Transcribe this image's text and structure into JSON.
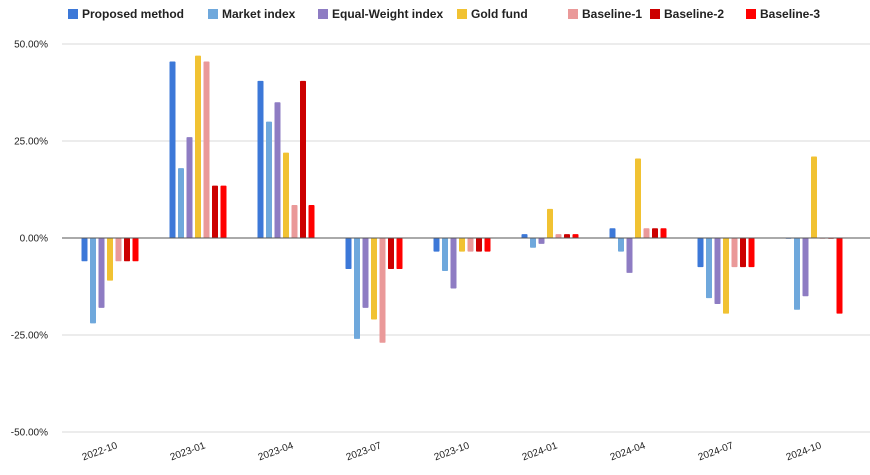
{
  "chart_data": {
    "type": "bar",
    "title": "",
    "xlabel": "",
    "ylabel": "",
    "ylim": [
      -50,
      50
    ],
    "yticks": [
      50,
      25,
      0,
      -25,
      -50
    ],
    "ytick_labels": [
      "50.00%",
      "25.00%",
      "0.00%",
      "-25.00%",
      "-50.00%"
    ],
    "categories": [
      "2022-10",
      "2023-01",
      "2023-04",
      "2023-07",
      "2023-10",
      "2024-01",
      "2024-04",
      "2024-07",
      "2024-10"
    ],
    "grid": true,
    "legend_position": "top",
    "series": [
      {
        "name": "Proposed method",
        "color": "#3c78d8",
        "values": [
          -6.0,
          45.5,
          40.5,
          -8.0,
          -3.5,
          1.0,
          2.5,
          -7.5,
          -0.2
        ]
      },
      {
        "name": "Market index",
        "color": "#6fa8dc",
        "values": [
          -22.0,
          18.0,
          30.0,
          -26.0,
          -8.5,
          -2.5,
          -3.5,
          -15.5,
          -18.5
        ]
      },
      {
        "name": "Equal-Weight index",
        "color": "#8e7cc3",
        "values": [
          -18.0,
          26.0,
          35.0,
          -18.0,
          -13.0,
          -1.5,
          -9.0,
          -17.0,
          -15.0
        ]
      },
      {
        "name": "Gold fund",
        "color": "#f1c232",
        "values": [
          -11.0,
          47.0,
          22.0,
          -21.0,
          -3.5,
          7.5,
          20.5,
          -19.5,
          21.0
        ]
      },
      {
        "name": "Baseline-1",
        "color": "#ea9999",
        "values": [
          -6.0,
          45.5,
          8.5,
          -27.0,
          -3.5,
          1.0,
          2.5,
          -7.5,
          -0.2
        ]
      },
      {
        "name": "Baseline-2",
        "color": "#cc0000",
        "values": [
          -6.0,
          13.5,
          40.5,
          -8.0,
          -3.5,
          1.0,
          2.5,
          -7.5,
          -0.2
        ]
      },
      {
        "name": "Baseline-3",
        "color": "#ff0000",
        "values": [
          -6.0,
          13.5,
          8.5,
          -8.0,
          -3.5,
          1.0,
          2.5,
          -7.5,
          -19.5
        ]
      }
    ]
  }
}
